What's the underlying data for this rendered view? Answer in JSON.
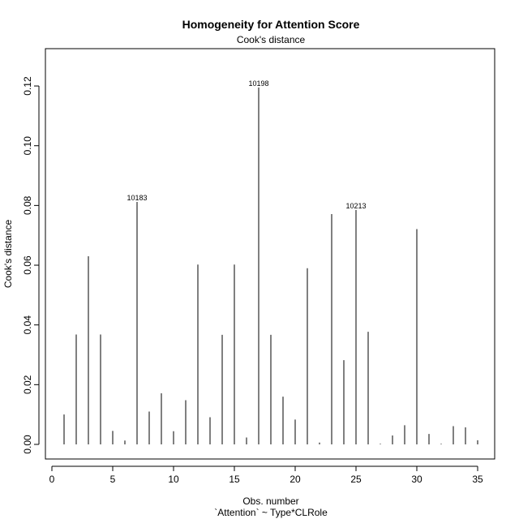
{
  "chart_data": {
    "type": "bar",
    "title": "Homogeneity for Attention Score",
    "subtitle": "Cook's distance",
    "xlabel": "Obs. number",
    "xlabel2": "`Attention` ~ Type*CLRole",
    "ylabel": "Cook's distance",
    "xlim": [
      0,
      35
    ],
    "ylim": [
      0,
      0.13
    ],
    "xticks": [
      0,
      5,
      10,
      15,
      20,
      25,
      30,
      35
    ],
    "xtick_labels": [
      "0",
      "5",
      "10",
      "15",
      "20",
      "25",
      "30",
      "35"
    ],
    "yticks": [
      0.0,
      0.02,
      0.04,
      0.06,
      0.08,
      0.1,
      0.12
    ],
    "ytick_labels": [
      "0.00",
      "0.02",
      "0.04",
      "0.06",
      "0.08",
      "0.10",
      "0.12"
    ],
    "grid": false,
    "x": [
      1,
      2,
      3,
      4,
      5,
      6,
      7,
      8,
      9,
      10,
      11,
      12,
      13,
      14,
      15,
      16,
      17,
      18,
      19,
      20,
      21,
      22,
      23,
      24,
      25,
      26,
      27,
      28,
      29,
      30,
      31,
      32,
      33,
      34,
      35
    ],
    "values": [
      0.01,
      0.0368,
      0.063,
      0.0368,
      0.0045,
      0.0013,
      0.0812,
      0.011,
      0.0171,
      0.0044,
      0.0148,
      0.0602,
      0.0091,
      0.0367,
      0.0602,
      0.0023,
      0.1195,
      0.0367,
      0.016,
      0.0083,
      0.059,
      0.0006,
      0.0771,
      0.0282,
      0.0785,
      0.0377,
      0.0002,
      0.003,
      0.0064,
      0.0721,
      0.0035,
      0.0002,
      0.0061,
      0.0057,
      0.0014
    ],
    "annotations": [
      {
        "x": 7,
        "label": "10183"
      },
      {
        "x": 17,
        "label": "10198"
      },
      {
        "x": 25,
        "label": "10213"
      }
    ]
  }
}
